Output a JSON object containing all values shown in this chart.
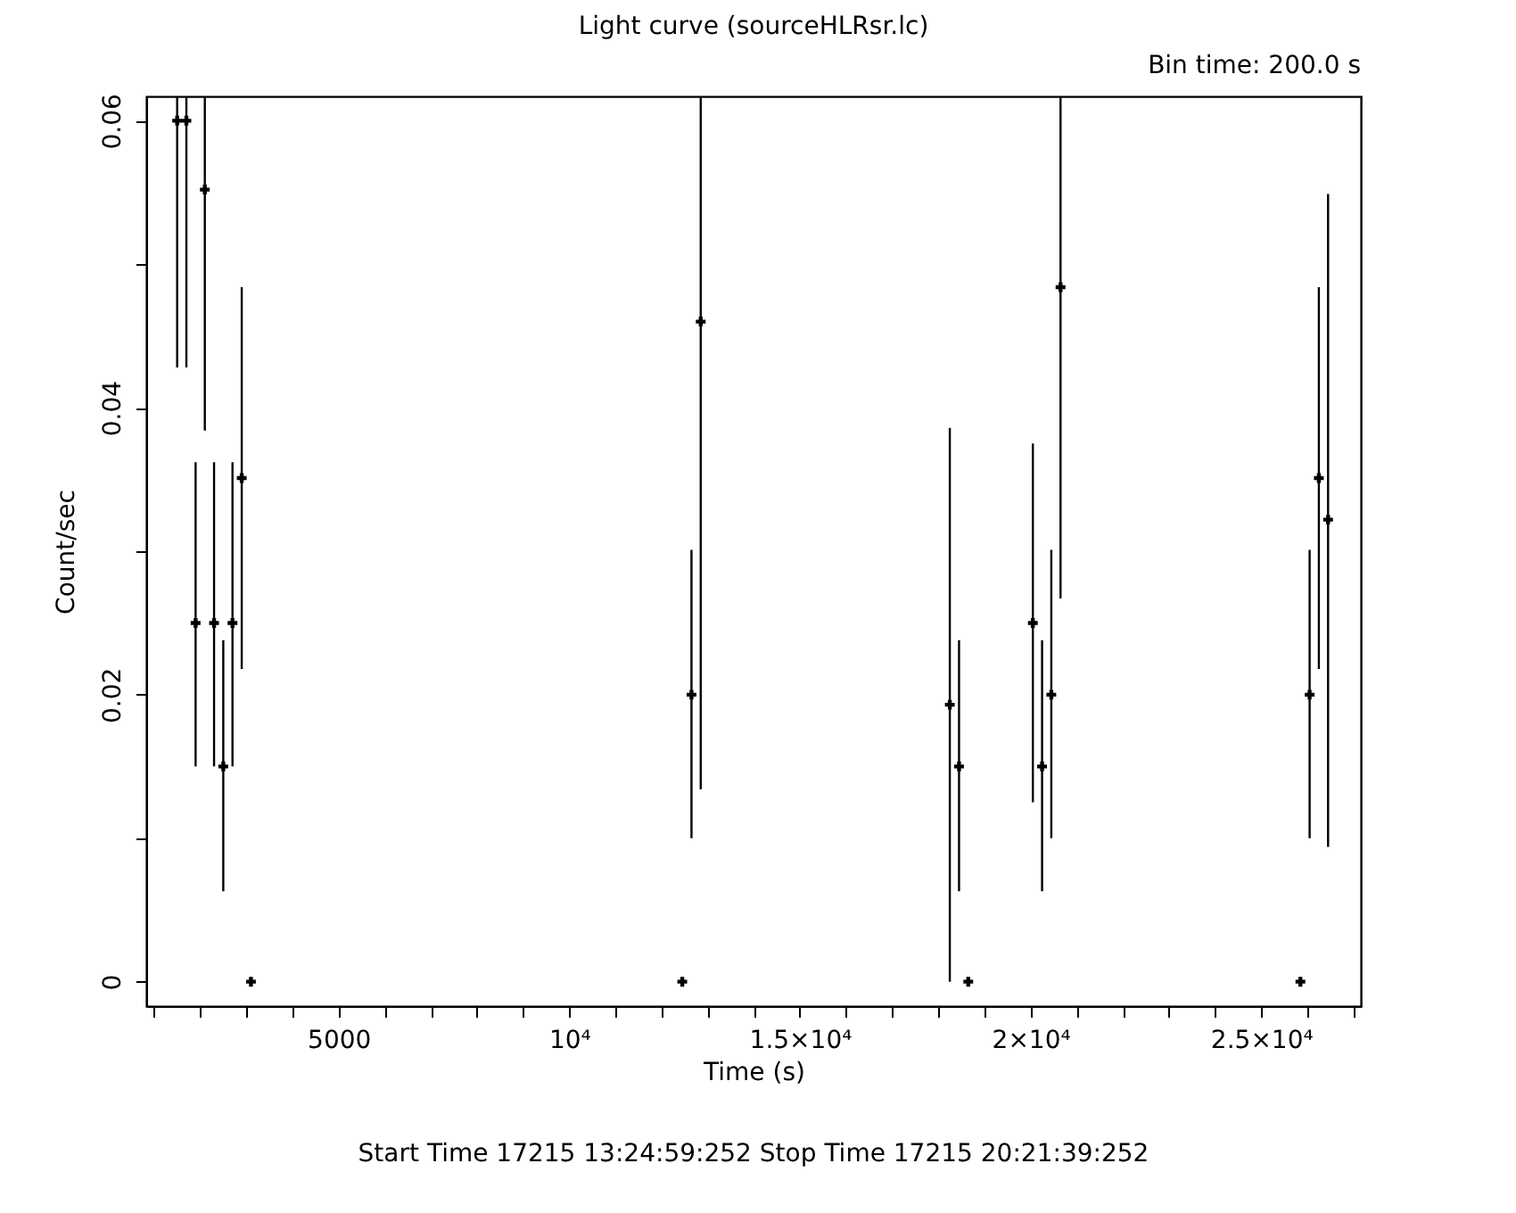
{
  "chart_data": {
    "type": "scatter",
    "title": "Light curve (sourceHLRsr.lc)",
    "xlabel": "Time (s)",
    "ylabel": "Count/sec",
    "annotations": [
      "Bin time:    200.0     s",
      "Start Time 17215 13:24:59:252    Stop Time 17215 20:21:39:252"
    ],
    "x": [
      1500,
      1700,
      1900,
      2100,
      2300,
      2500,
      2700,
      2900,
      3100,
      12450,
      12650,
      12850,
      18250,
      18450,
      18650,
      20050,
      20250,
      20450,
      20650,
      25850,
      26050,
      26250,
      26450
    ],
    "series": [
      {
        "color": "#000000",
        "values": [
          0.06,
          0.06,
          0.025,
          0.0552,
          0.025,
          0.015,
          0.025,
          0.0351,
          0,
          0,
          0.02,
          0.046,
          0.0193,
          0.015,
          0,
          0.025,
          0.015,
          0.02,
          0.0484,
          0,
          0.02,
          0.0351,
          0.0322
        ],
        "errors": [
          [
            0.0428,
            0.0617
          ],
          [
            0.0428,
            0.0617
          ],
          [
            0.015,
            0.0362
          ],
          [
            0.0384,
            0.0617
          ],
          [
            0.015,
            0.0362
          ],
          [
            0.0063,
            0.0238
          ],
          [
            0.015,
            0.0362
          ],
          [
            0.0218,
            0.0484
          ],
          null,
          null,
          [
            0.01,
            0.0301
          ],
          [
            0.0134,
            0.0617
          ],
          [
            0,
            0.0386
          ],
          [
            0.0063,
            0.0238
          ],
          null,
          [
            0.0125,
            0.0375
          ],
          [
            0.0063,
            0.0238
          ],
          [
            0.01,
            0.0301
          ],
          [
            0.0267,
            0.0617
          ],
          null,
          [
            0.01,
            0.0301
          ],
          [
            0.0218,
            0.0484
          ],
          [
            0.0094,
            0.0549
          ]
        ]
      }
    ],
    "marker": "cross",
    "grid": false,
    "xlim": [
      830,
      27160
    ],
    "ylim": [
      -0.0017,
      0.0617
    ],
    "xticks": [
      {
        "value": 1000,
        "label": null
      },
      {
        "value": 2000,
        "label": null
      },
      {
        "value": 3000,
        "label": null
      },
      {
        "value": 4000,
        "label": null
      },
      5000,
      {
        "value": 6000,
        "label": null
      },
      {
        "value": 7000,
        "label": null
      },
      {
        "value": 8000,
        "label": null
      },
      {
        "value": 9000,
        "label": null
      },
      {
        "value": 10000,
        "label": "10⁴"
      },
      {
        "value": 11000,
        "label": null
      },
      {
        "value": 12000,
        "label": null
      },
      {
        "value": 13000,
        "label": null
      },
      {
        "value": 14000,
        "label": null
      },
      {
        "value": 15000,
        "label": "1.5×10⁴"
      },
      {
        "value": 16000,
        "label": null
      },
      {
        "value": 17000,
        "label": null
      },
      {
        "value": 18000,
        "label": null
      },
      {
        "value": 19000,
        "label": null
      },
      {
        "value": 20000,
        "label": "2×10⁴"
      },
      {
        "value": 21000,
        "label": null
      },
      {
        "value": 22000,
        "label": null
      },
      {
        "value": 23000,
        "label": null
      },
      {
        "value": 24000,
        "label": null
      },
      {
        "value": 25000,
        "label": "2.5×10⁴"
      },
      {
        "value": 26000,
        "label": null
      },
      {
        "value": 27000,
        "label": null
      }
    ],
    "yticks": [
      0,
      {
        "value": 0.01,
        "label": null
      },
      0.02,
      {
        "value": 0.03,
        "label": null
      },
      0.04,
      {
        "value": 0.05,
        "label": null
      },
      0.06
    ]
  }
}
